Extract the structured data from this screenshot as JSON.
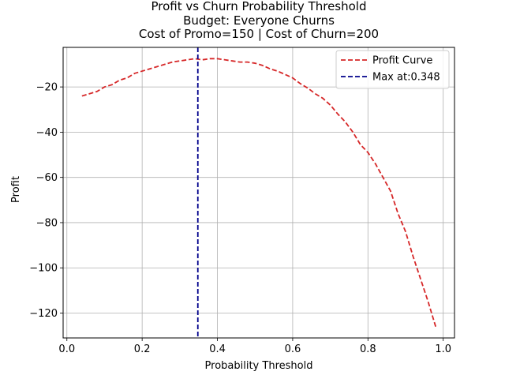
{
  "chart_data": {
    "type": "line",
    "title": "Profit vs Churn Probability Threshold",
    "subtitle_1": "Budget: Everyone Churns",
    "subtitle_2": "Cost of Promo=150 | Cost of Churn=200",
    "xlabel": "Probability Threshold",
    "ylabel": "Profit",
    "xlim": [
      -0.01,
      1.03
    ],
    "ylim": [
      -131,
      -2.5
    ],
    "grid": true,
    "legend_position": "top-right",
    "x_ticks": [
      {
        "value": 0.0,
        "label": "0.0"
      },
      {
        "value": 0.2,
        "label": "0.2"
      },
      {
        "value": 0.4,
        "label": "0.4"
      },
      {
        "value": 0.6,
        "label": "0.6"
      },
      {
        "value": 0.8,
        "label": "0.8"
      },
      {
        "value": 1.0,
        "label": "1.0"
      }
    ],
    "y_ticks": [
      {
        "value": -20,
        "label": "−20"
      },
      {
        "value": -40,
        "label": "−40"
      },
      {
        "value": -60,
        "label": "−60"
      },
      {
        "value": -80,
        "label": "−80"
      },
      {
        "value": -100,
        "label": "−100"
      },
      {
        "value": -120,
        "label": "−120"
      }
    ],
    "series": [
      {
        "name": "Profit Curve",
        "color": "#d62728",
        "style": "dashed",
        "x": [
          0.04,
          0.06,
          0.08,
          0.1,
          0.12,
          0.14,
          0.16,
          0.18,
          0.2,
          0.22,
          0.24,
          0.26,
          0.28,
          0.3,
          0.32,
          0.34,
          0.36,
          0.38,
          0.4,
          0.42,
          0.44,
          0.46,
          0.48,
          0.5,
          0.52,
          0.54,
          0.56,
          0.58,
          0.6,
          0.62,
          0.64,
          0.66,
          0.68,
          0.7,
          0.72,
          0.74,
          0.76,
          0.78,
          0.8,
          0.82,
          0.84,
          0.86,
          0.88,
          0.9,
          0.92,
          0.94,
          0.96,
          0.98
        ],
        "y": [
          -24,
          -23,
          -22,
          -20,
          -19,
          -17,
          -16,
          -14,
          -13,
          -12,
          -11,
          -10,
          -9,
          -8.5,
          -8,
          -7.5,
          -8,
          -7.5,
          -7.5,
          -8,
          -8.5,
          -9,
          -9,
          -9.5,
          -10.5,
          -12,
          -13,
          -14.5,
          -16,
          -18.5,
          -20.5,
          -23,
          -25,
          -28,
          -32,
          -35.5,
          -40,
          -45.5,
          -49,
          -54,
          -60,
          -66,
          -76,
          -84,
          -95,
          -105,
          -115,
          -126
        ]
      }
    ],
    "vlines": [
      {
        "name": "Max at:0.348",
        "x": 0.348,
        "color": "#00008b",
        "style": "dashed"
      }
    ]
  }
}
